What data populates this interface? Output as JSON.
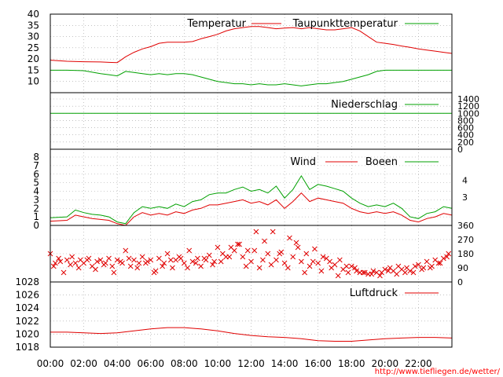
{
  "footer": {
    "url": "http://www.tiefliegen.de/wetter/"
  },
  "colors": {
    "red": "#e00000",
    "green": "#00a000"
  },
  "chart_data": [
    {
      "type": "line",
      "ylim": [
        5,
        40
      ],
      "yticks": [
        "10",
        "15",
        "20",
        "25",
        "30",
        "35",
        "40"
      ],
      "legend": [
        "Temperatur",
        "Taupunkttemperatur"
      ],
      "series": [
        {
          "name": "Temperatur",
          "color": "#e00000",
          "x": [
            0,
            1,
            2,
            3,
            3.5,
            4,
            4.5,
            5,
            5.5,
            6,
            6.5,
            7,
            7.5,
            8,
            8.5,
            9,
            9.5,
            10,
            10.5,
            11,
            11.5,
            12,
            12.5,
            13,
            13.5,
            14,
            14.5,
            15,
            15.5,
            16,
            16.5,
            17,
            17.5,
            18,
            18.5,
            19,
            19.5,
            20,
            20.5,
            21,
            21.5,
            22,
            22.5,
            23,
            23.5,
            24
          ],
          "y": [
            19.5,
            19,
            18.8,
            18.7,
            18.5,
            18.4,
            21,
            23,
            24.5,
            25.5,
            27,
            27.5,
            27.5,
            27.5,
            27.8,
            29,
            30,
            31,
            32.5,
            33.5,
            34,
            34.5,
            34.5,
            34,
            33.5,
            33.8,
            34,
            33.5,
            34,
            33.5,
            33,
            33,
            33.5,
            34,
            32.5,
            30,
            27.5,
            27,
            26.5,
            25.8,
            25.2,
            24.5,
            24,
            23.5,
            23,
            22.5
          ]
        },
        {
          "name": "Taupunkttemperatur",
          "color": "#00a000",
          "x": [
            0,
            1,
            2,
            3,
            3.5,
            4,
            4.5,
            5,
            5.5,
            6,
            6.5,
            7,
            7.5,
            8,
            8.5,
            9,
            9.5,
            10,
            10.5,
            11,
            11.5,
            12,
            12.5,
            13,
            13.5,
            14,
            14.5,
            15,
            15.5,
            16,
            16.5,
            17,
            17.5,
            18,
            18.5,
            19,
            19.5,
            20,
            20.5,
            21,
            21.5,
            22,
            22.5,
            23,
            23.5,
            24
          ],
          "y": [
            15,
            15,
            14.8,
            13.5,
            13,
            12.5,
            14.5,
            14,
            13.5,
            13,
            13.5,
            13,
            13.5,
            13.5,
            13,
            12,
            11,
            10,
            9.5,
            9,
            9,
            8.5,
            9,
            8.5,
            8.5,
            9,
            8.5,
            8,
            8.5,
            9,
            9,
            9.5,
            10,
            11,
            12,
            13,
            14.5,
            15,
            15,
            15,
            15,
            15,
            15,
            15,
            15,
            15
          ]
        }
      ]
    },
    {
      "type": "line",
      "ylim": [
        0,
        1400
      ],
      "yticks": [
        "0",
        "200",
        "400",
        "600",
        "800",
        "1000",
        "1200",
        "1400"
      ],
      "legend": [
        "Niederschlag"
      ],
      "series": [
        {
          "name": "Niederschlag",
          "color": "#00a000",
          "x": [
            0,
            24
          ],
          "y": [
            1000,
            1000
          ]
        }
      ]
    },
    {
      "type": "line",
      "ylim": [
        0,
        8
      ],
      "yticks": [
        "0",
        "1",
        "2",
        "3",
        "4",
        "5",
        "6",
        "7",
        "8"
      ],
      "beaufort": [
        "3",
        "4"
      ],
      "legend": [
        "Wind",
        "Boeen"
      ],
      "series": [
        {
          "name": "Wind",
          "color": "#e00000",
          "x": [
            0,
            1,
            1.5,
            2,
            2.5,
            3,
            3.5,
            4,
            4.5,
            5,
            5.5,
            6,
            6.5,
            7,
            7.5,
            8,
            8.5,
            9,
            9.5,
            10,
            10.5,
            11,
            11.5,
            12,
            12.5,
            13,
            13.5,
            14,
            14.5,
            15,
            15.5,
            16,
            16.5,
            17,
            17.5,
            18,
            18.5,
            19,
            19.5,
            20,
            20.5,
            21,
            21.5,
            22,
            22.5,
            23,
            23.5,
            24
          ],
          "y": [
            0.5,
            0.6,
            1.2,
            1,
            0.8,
            0.7,
            0.6,
            0.2,
            0,
            1,
            1.5,
            1.2,
            1.4,
            1.2,
            1.6,
            1.4,
            1.8,
            2,
            2.4,
            2.4,
            2.6,
            2.8,
            3,
            2.6,
            2.8,
            2.4,
            3,
            2,
            2.8,
            3.8,
            2.8,
            3.2,
            3,
            2.8,
            2.6,
            2,
            1.6,
            1.4,
            1.6,
            1.4,
            1.6,
            1.2,
            0.6,
            0.4,
            0.8,
            1,
            1.4,
            1.2
          ]
        },
        {
          "name": "Boeen",
          "color": "#00a000",
          "x": [
            0,
            1,
            1.5,
            2,
            2.5,
            3,
            3.5,
            4,
            4.5,
            5,
            5.5,
            6,
            6.5,
            7,
            7.5,
            8,
            8.5,
            9,
            9.5,
            10,
            10.5,
            11,
            11.5,
            12,
            12.5,
            13,
            13.5,
            14,
            14.5,
            15,
            15.5,
            16,
            16.5,
            17,
            17.5,
            18,
            18.5,
            19,
            19.5,
            20,
            20.5,
            21,
            21.5,
            22,
            22.5,
            23,
            23.5,
            24
          ],
          "y": [
            0.9,
            1,
            1.8,
            1.5,
            1.3,
            1.2,
            1,
            0.4,
            0.2,
            1.5,
            2.2,
            2,
            2.2,
            2,
            2.5,
            2.2,
            2.8,
            3,
            3.6,
            3.8,
            3.8,
            4.2,
            4.5,
            4,
            4.2,
            3.8,
            4.6,
            3.2,
            4.2,
            5.8,
            4.2,
            4.8,
            4.6,
            4.3,
            4,
            3.2,
            2.6,
            2.2,
            2.4,
            2.2,
            2.6,
            2,
            1,
            0.8,
            1.4,
            1.6,
            2.2,
            2
          ]
        }
      ]
    },
    {
      "type": "scatter",
      "ylim": [
        0,
        360
      ],
      "yticks": [
        "0",
        "90",
        "180",
        "270",
        "360"
      ],
      "series": [
        {
          "name": "",
          "color": "#e00000",
          "x": [
            0,
            0.3,
            0.5,
            0.8,
            1,
            1.3,
            1.5,
            1.8,
            2,
            2.3,
            2.5,
            2.8,
            3,
            3.3,
            3.5,
            3.8,
            4,
            4.3,
            4.5,
            4.8,
            5,
            5.3,
            5.5,
            5.8,
            6,
            6.3,
            6.5,
            6.8,
            7,
            7.3,
            7.5,
            7.8,
            8,
            8.3,
            8.5,
            8.8,
            9,
            9.3,
            9.5,
            9.8,
            10,
            10.3,
            10.5,
            10.8,
            11,
            11.3,
            11.5,
            11.8,
            12,
            12.3,
            12.5,
            12.8,
            13,
            13.3,
            13.5,
            13.8,
            14,
            14.3,
            14.5,
            14.8,
            15,
            15.3,
            15.5,
            15.8,
            16,
            16.3,
            16.5,
            16.8,
            17,
            17.3,
            17.5,
            17.8,
            18,
            18.3,
            18.5,
            18.8,
            19,
            19.3,
            19.5,
            19.8,
            20,
            20.3,
            20.5,
            20.8,
            21,
            21.3,
            21.5,
            21.8,
            22,
            22.3,
            22.5,
            22.8,
            23,
            23.3,
            23.5,
            23.8
          ],
          "y": [
            180,
            120,
            150,
            60,
            140,
            160,
            120,
            140,
            120,
            150,
            100,
            130,
            140,
            120,
            150,
            60,
            140,
            120,
            200,
            100,
            140,
            120,
            160,
            130,
            140,
            70,
            150,
            120,
            180,
            90,
            140,
            150,
            120,
            200,
            130,
            150,
            100,
            140,
            170,
            130,
            220,
            180,
            160,
            220,
            200,
            240,
            160,
            200,
            130,
            320,
            90,
            260,
            180,
            320,
            140,
            190,
            120,
            280,
            160,
            220,
            130,
            180,
            100,
            210,
            120,
            160,
            150,
            90,
            110,
            140,
            80,
            60,
            100,
            70,
            60,
            60,
            50,
            70,
            60,
            60,
            80,
            90,
            70,
            100,
            80,
            90,
            70,
            100,
            110,
            90,
            130,
            100,
            140,
            120,
            150,
            180
          ],
          "x2": [
            0.2,
            0.6,
            1.2,
            1.7,
            2.2,
            2.7,
            3.2,
            3.7,
            4.2,
            4.7,
            5.2,
            5.7,
            6.2,
            6.7,
            7.2,
            7.7,
            8.2,
            8.7,
            9.2,
            9.7,
            10.2,
            10.7,
            11.2,
            11.7,
            12.2,
            12.7,
            13.2,
            13.7,
            14.2,
            14.7,
            15.2,
            15.7,
            16.2,
            16.7,
            17.2,
            17.7,
            18.2,
            18.7,
            19.2,
            19.7,
            20.2,
            20.7,
            21.2,
            21.7,
            22.2,
            22.7,
            23.2,
            23.7
          ],
          "y2": [
            100,
            130,
            110,
            90,
            140,
            80,
            110,
            100,
            130,
            150,
            90,
            120,
            60,
            100,
            140,
            160,
            90,
            120,
            150,
            110,
            130,
            160,
            240,
            100,
            200,
            140,
            110,
            180,
            90,
            250,
            60,
            130,
            70,
            130,
            40,
            100,
            90,
            60,
            50,
            40,
            70,
            50,
            60,
            60,
            80,
            90,
            120,
            160
          ]
        }
      ]
    },
    {
      "type": "line",
      "ylim": [
        1018,
        1028
      ],
      "yticks": [
        "1018",
        "1020",
        "1022",
        "1024",
        "1026",
        "1028"
      ],
      "legend": [
        "Luftdruck"
      ],
      "xticks": [
        "00:00",
        "02:00",
        "04:00",
        "06:00",
        "08:00",
        "10:00",
        "12:00",
        "14:00",
        "16:00",
        "18:00",
        "20:00",
        "22:00"
      ],
      "series": [
        {
          "name": "Luftdruck",
          "color": "#e00000",
          "x": [
            0,
            1,
            2,
            3,
            4,
            5,
            6,
            7,
            8,
            9,
            10,
            11,
            12,
            13,
            14,
            15,
            16,
            17,
            18,
            19,
            20,
            21,
            22,
            23,
            24
          ],
          "y": [
            1020.3,
            1020.3,
            1020.2,
            1020.1,
            1020.2,
            1020.5,
            1020.8,
            1021,
            1021,
            1020.8,
            1020.5,
            1020.1,
            1019.8,
            1019.6,
            1019.5,
            1019.3,
            1019,
            1018.9,
            1018.9,
            1019.1,
            1019.3,
            1019.4,
            1019.5,
            1019.5,
            1019.4
          ]
        }
      ]
    }
  ]
}
